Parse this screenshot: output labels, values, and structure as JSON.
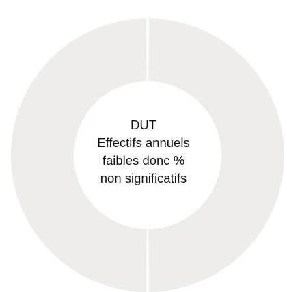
{
  "chart_data": {
    "type": "pie",
    "donut": true,
    "series": [
      {
        "values": [
          50,
          50
        ]
      }
    ],
    "colors": [
      "#efedea",
      "#efedea"
    ],
    "center_text": [
      "DUT",
      "Effectifs annuels",
      "faibles donc %",
      "non significatifs"
    ]
  }
}
